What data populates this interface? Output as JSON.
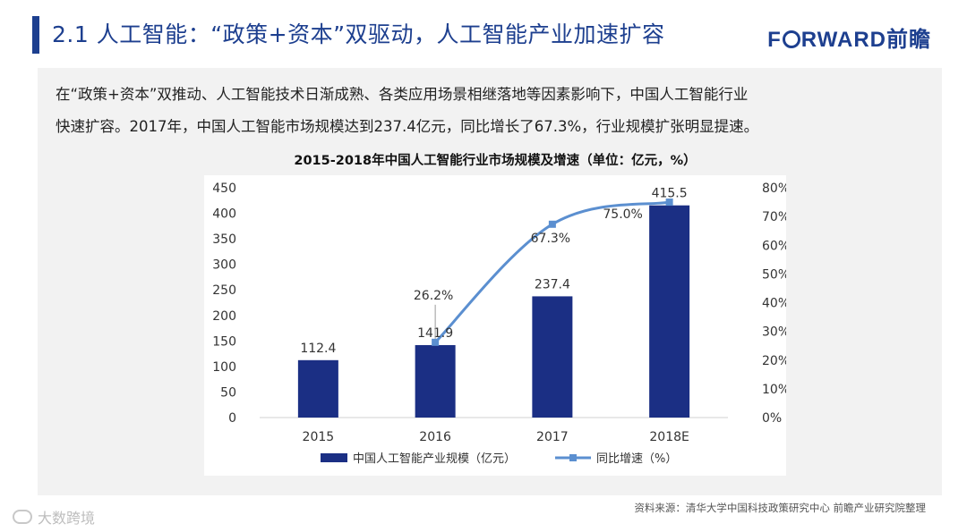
{
  "header": {
    "title": "2.1 人工智能：“政策+资本”双驱动，人工智能产业加速扩容",
    "logo_text_part1": "F",
    "logo_text_part2": "RWARD前瞻"
  },
  "intro": {
    "line1": "在“政策+资本”双推动、人工智能技术日渐成熟、各类应用场景相继落地等因素影响下，中国人工智能行业",
    "line2": "快速扩容。2017年，中国人工智能市场规模达到237.4亿元，同比增长了67.3%，行业规模扩张明显提速。"
  },
  "chart_data": {
    "type": "bar",
    "title": "2015-2018年中国人工智能行业市场规模及增速（单位：亿元，%）",
    "categories": [
      "2015",
      "2016",
      "2017",
      "2018E"
    ],
    "series": [
      {
        "name": "中国人工智能产业规模（亿元）",
        "kind": "bar",
        "axis": "left",
        "values": [
          112.4,
          141.9,
          237.4,
          415.5
        ],
        "labels": [
          "112.4",
          "141.9",
          "237.4",
          "415.5"
        ],
        "color": "#1b2f84"
      },
      {
        "name": "同比增速（%）",
        "kind": "line",
        "axis": "right",
        "values": [
          null,
          26.2,
          67.3,
          75.0
        ],
        "labels": [
          "",
          "26.2%",
          "67.3%",
          "75.0%"
        ],
        "color": "#5b8fd0"
      }
    ],
    "ylim_left": [
      0,
      450
    ],
    "yticks_left": [
      "0",
      "50",
      "100",
      "150",
      "200",
      "250",
      "300",
      "350",
      "400",
      "450"
    ],
    "ylim_right": [
      0,
      80
    ],
    "yticks_right": [
      "0%",
      "10%",
      "20%",
      "30%",
      "40%",
      "50%",
      "60%",
      "70%",
      "80%"
    ],
    "legend_position": "bottom"
  },
  "footer": {
    "source": "资料来源：清华大学中国科技政策研究中心 前瞻产业研究院整理",
    "watermark": "大数跨境"
  }
}
